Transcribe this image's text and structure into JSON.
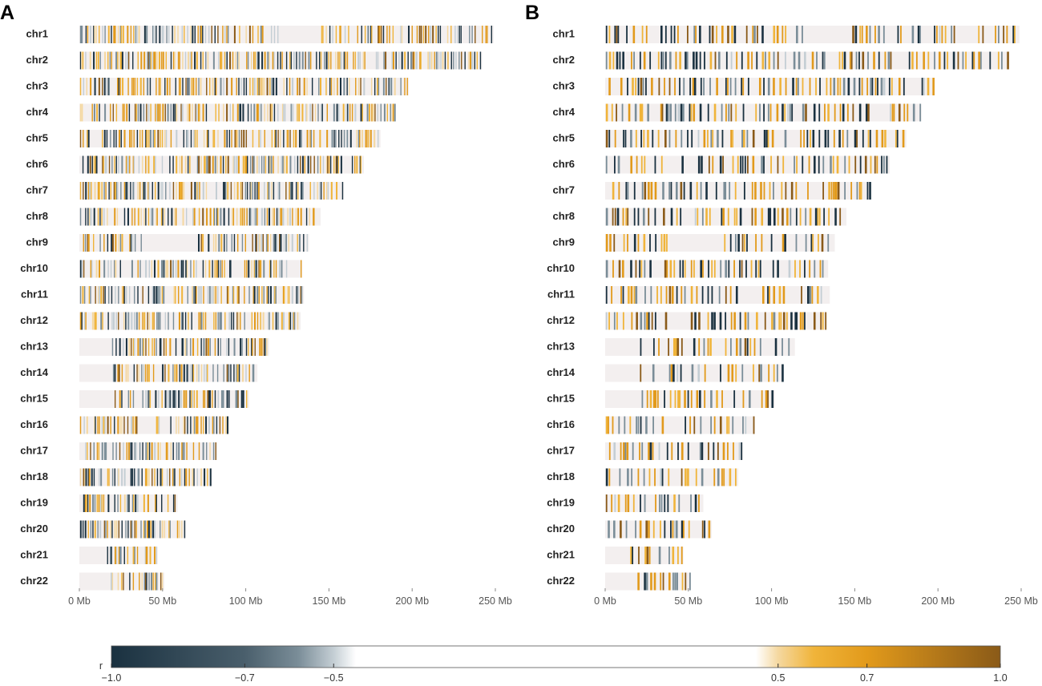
{
  "colors": {
    "chrom_bg": "#f3efef",
    "neg_strong": "#1a3140",
    "neg_mid": "#7a8d98",
    "neg_weak": "#c4ced4",
    "pos_weak": "#f5d8a0",
    "pos_mid": "#f0b43a",
    "pos_strong": "#e29a1b",
    "pos_max": "#8a5a18",
    "axis": "#888888"
  },
  "chart_data": {
    "type": "heatmap",
    "title": "",
    "xlabel": "",
    "ylabel": "",
    "x_unit": "Mb",
    "xlim": [
      0,
      250
    ],
    "x_ticks": [
      0,
      50,
      100,
      150,
      200,
      250
    ],
    "x_tick_labels": [
      "0 Mb",
      "50 Mb",
      "100 Mb",
      "150 Mb",
      "200 Mb",
      "250 Mb"
    ],
    "chromosomes": [
      {
        "name": "chr1",
        "length": 249,
        "gaps": [
          [
            120,
            145
          ]
        ]
      },
      {
        "name": "chr2",
        "length": 242,
        "gaps": []
      },
      {
        "name": "chr3",
        "length": 198,
        "gaps": []
      },
      {
        "name": "chr4",
        "length": 190,
        "gaps": []
      },
      {
        "name": "chr5",
        "length": 181,
        "gaps": []
      },
      {
        "name": "chr6",
        "length": 171,
        "gaps": []
      },
      {
        "name": "chr7",
        "length": 159,
        "gaps": []
      },
      {
        "name": "chr8",
        "length": 145,
        "gaps": []
      },
      {
        "name": "chr9",
        "length": 138,
        "gaps": [
          [
            38,
            70
          ]
        ]
      },
      {
        "name": "chr10",
        "length": 134,
        "gaps": []
      },
      {
        "name": "chr11",
        "length": 135,
        "gaps": []
      },
      {
        "name": "chr12",
        "length": 133,
        "gaps": []
      },
      {
        "name": "chr13",
        "length": 114,
        "gaps": [
          [
            0,
            19
          ]
        ]
      },
      {
        "name": "chr14",
        "length": 107,
        "gaps": [
          [
            0,
            18
          ]
        ]
      },
      {
        "name": "chr15",
        "length": 102,
        "gaps": [
          [
            0,
            20
          ]
        ]
      },
      {
        "name": "chr16",
        "length": 90,
        "gaps": [
          [
            35,
            46
          ]
        ]
      },
      {
        "name": "chr17",
        "length": 83,
        "gaps": []
      },
      {
        "name": "chr18",
        "length": 80,
        "gaps": []
      },
      {
        "name": "chr19",
        "length": 59,
        "gaps": []
      },
      {
        "name": "chr20",
        "length": 64,
        "gaps": []
      },
      {
        "name": "chr21",
        "length": 47,
        "gaps": [
          [
            0,
            15
          ]
        ]
      },
      {
        "name": "chr22",
        "length": 51,
        "gaps": [
          [
            0,
            17
          ]
        ]
      }
    ],
    "panels": [
      {
        "label": "A",
        "marker_density": 1.0,
        "min_abs_r": 0.5,
        "seed": 17
      },
      {
        "label": "B",
        "marker_density": 0.55,
        "min_abs_r": 0.62,
        "seed": 91
      }
    ],
    "colorbar": {
      "label": "r",
      "range": [
        -1.0,
        1.0
      ],
      "tick_values": [
        -1.0,
        -0.7,
        -0.5,
        0.5,
        0.7,
        1.0
      ],
      "tick_labels": [
        "−1.0",
        "−0.7",
        "−0.5",
        "0.5",
        "0.7",
        "1.0"
      ],
      "blank_range": [
        -0.45,
        0.45
      ]
    }
  }
}
